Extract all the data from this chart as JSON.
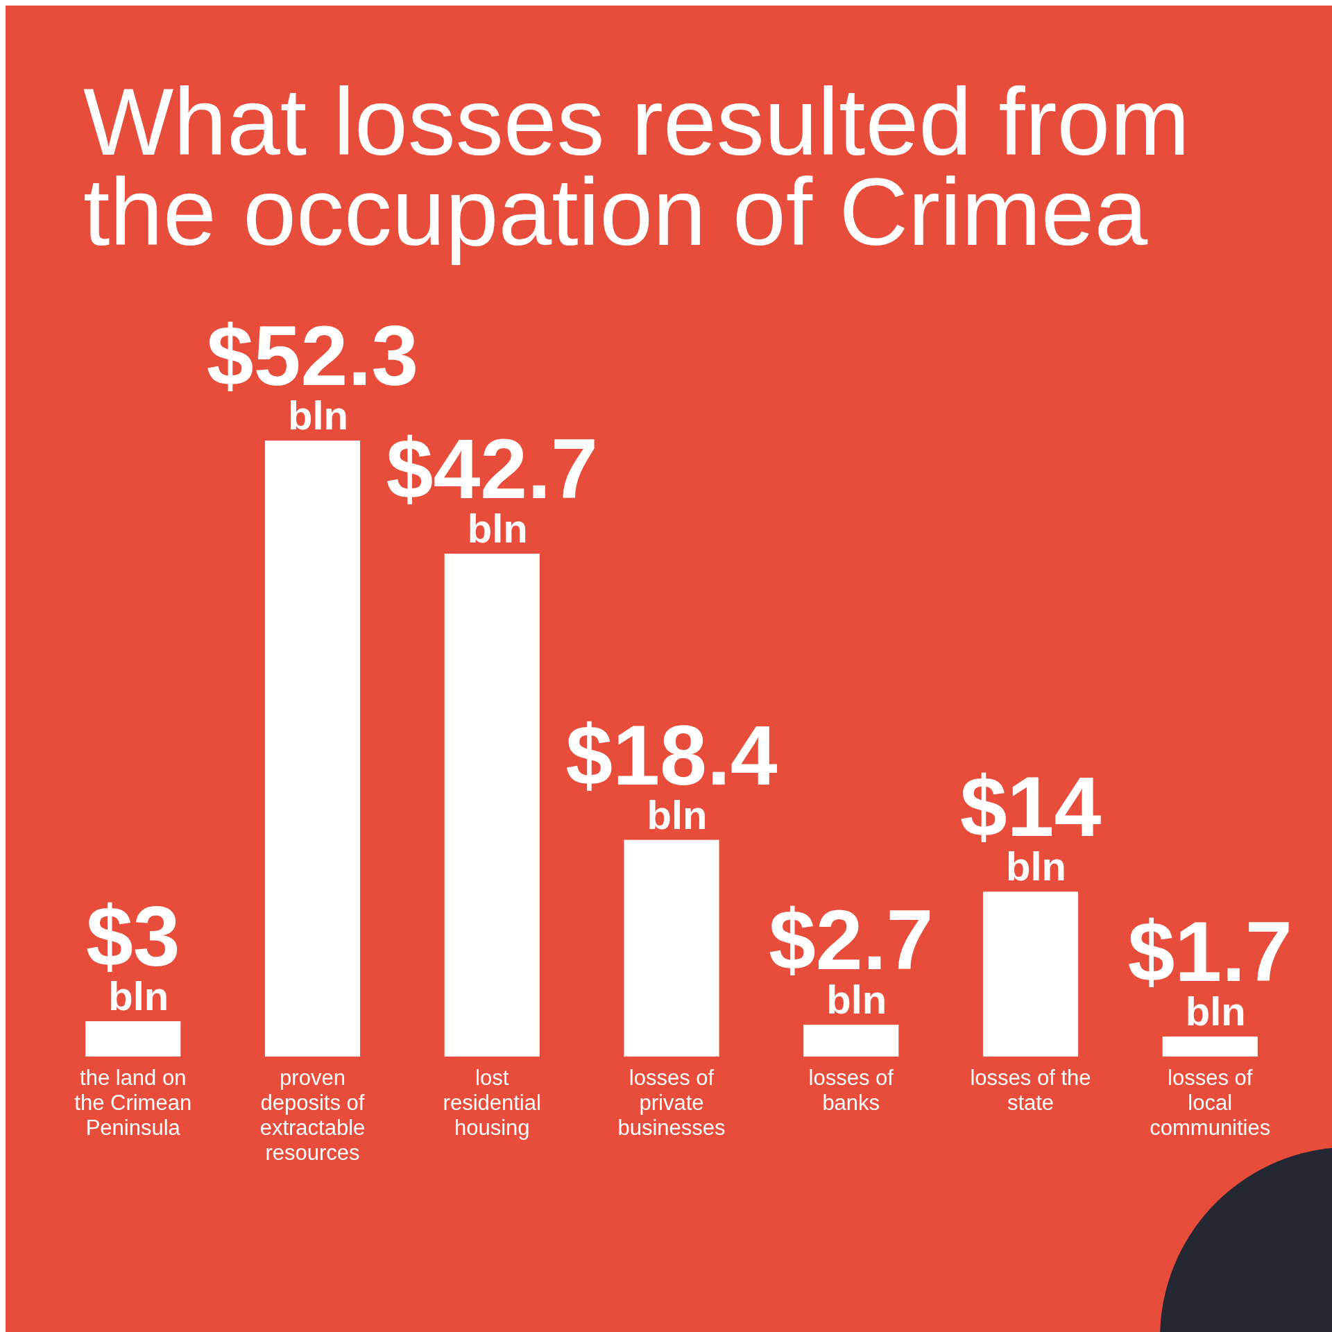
{
  "chart_data": {
    "type": "bar",
    "title": "What losses resulted from the occupation of Crimea",
    "categories": [
      "the land on the Crimean Peninsula",
      "proven deposits of extractable resources",
      "lost residential housing",
      "losses of private businesses",
      "losses of banks",
      "losses of the state",
      "losses of local communities"
    ],
    "values": [
      3,
      52.3,
      42.7,
      18.4,
      2.7,
      14,
      1.7
    ],
    "value_labels": [
      "$3 bln",
      "$52.3 bln",
      "$42.7 bln",
      "$18.4 bln",
      "$2.7 bln",
      "$14 bln",
      "$1.7 bln"
    ],
    "color": "#ffffff"
  }
}
